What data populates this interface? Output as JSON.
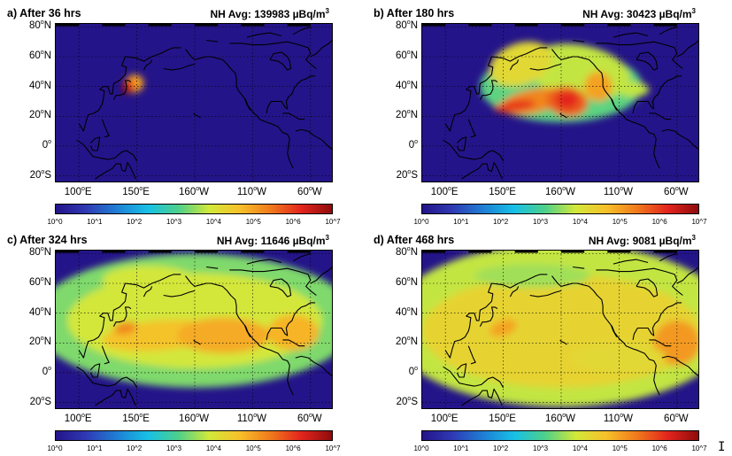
{
  "colorbar": {
    "stops": [
      "#241489",
      "#2f3ab4",
      "#1f7fd5",
      "#17c0e6",
      "#4ed08a",
      "#d2e83a",
      "#f7c02a",
      "#f07a1c",
      "#e3241d",
      "#8e0c0c"
    ],
    "ticks": [
      "10^0",
      "10^1",
      "10^2",
      "10^3",
      "10^4",
      "10^5",
      "10^6",
      "10^7"
    ]
  },
  "axes": {
    "y_ticks": [
      {
        "value": "80",
        "hemi": "N"
      },
      {
        "value": "60",
        "hemi": "N"
      },
      {
        "value": "40",
        "hemi": "N"
      },
      {
        "value": "20",
        "hemi": "N"
      },
      {
        "value": "0",
        "hemi": ""
      },
      {
        "value": "20",
        "hemi": "S"
      }
    ],
    "x_ticks": [
      {
        "value": "100",
        "hemi": "E"
      },
      {
        "value": "150",
        "hemi": "E"
      },
      {
        "value": "160",
        "hemi": "W"
      },
      {
        "value": "110",
        "hemi": "W"
      },
      {
        "value": "60",
        "hemi": "W"
      }
    ],
    "degree_symbol": "o"
  },
  "chart_data": [
    {
      "type": "heatmap",
      "title": "a) After 36 hrs",
      "avg_label": "NH Avg: 139983 µBq/m",
      "avg_sup": "3",
      "avg_value": 139983,
      "unit": "µBq/m3",
      "lon_range": [
        "80E",
        "40W"
      ],
      "lat_range": [
        -25,
        82
      ],
      "color_scale": "log10",
      "clim": [
        0,
        7
      ],
      "plume": [
        {
          "lon": 141,
          "lat": 38,
          "log10": 6.8
        },
        {
          "lon": 145,
          "lat": 42,
          "log10": 6.3
        },
        {
          "lon": 150,
          "lat": 44,
          "log10": 5.2
        }
      ]
    },
    {
      "type": "heatmap",
      "title": "b) After 180 hrs",
      "avg_label": "NH Avg: 30423 µBq/m",
      "avg_sup": "3",
      "avg_value": 30423,
      "unit": "µBq/m3",
      "lon_range": [
        "80E",
        "40W"
      ],
      "lat_range": [
        -25,
        82
      ],
      "color_scale": "log10",
      "clim": [
        0,
        7
      ],
      "plume": [
        {
          "lon": 160,
          "lat": 28,
          "log10": 5.8
        },
        {
          "lon": 200,
          "lat": 30,
          "log10": 6.0
        },
        {
          "lon": 230,
          "lat": 40,
          "log10": 5.0
        },
        {
          "lon": 170,
          "lat": 60,
          "log10": 4.5
        }
      ]
    },
    {
      "type": "heatmap",
      "title": "c) After 324 hrs",
      "avg_label": "NH Avg: 11646 µBq/m",
      "avg_sup": "3",
      "avg_value": 11646,
      "unit": "µBq/m3",
      "lon_range": [
        "80E",
        "40W"
      ],
      "lat_range": [
        -25,
        82
      ],
      "color_scale": "log10",
      "clim": [
        0,
        7
      ],
      "plume": [
        {
          "lon": 150,
          "lat": 30,
          "log10": 5.2
        },
        {
          "lon": 220,
          "lat": 25,
          "log10": 4.8
        },
        {
          "lon": 280,
          "lat": 25,
          "log10": 4.7
        }
      ]
    },
    {
      "type": "heatmap",
      "title": "d) After 468 hrs",
      "avg_label": "NH Avg: 9081 µBq/m",
      "avg_sup": "3",
      "avg_value": 9081,
      "unit": "µBq/m3",
      "lon_range": [
        "80E",
        "40W"
      ],
      "lat_range": [
        -25,
        82
      ],
      "color_scale": "log10",
      "clim": [
        0,
        7
      ],
      "plume": [
        {
          "lon": 150,
          "lat": 30,
          "log10": 5.0
        },
        {
          "lon": 220,
          "lat": 30,
          "log10": 4.6
        },
        {
          "lon": 300,
          "lat": 20,
          "log10": 4.8
        }
      ]
    }
  ],
  "cursor_glyph": "I"
}
